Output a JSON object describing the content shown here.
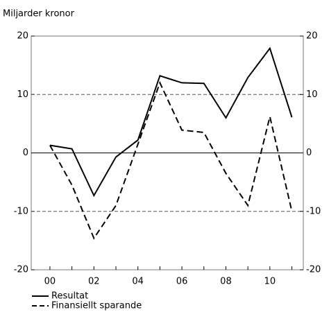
{
  "chart_data": {
    "type": "line",
    "subtitle": "Miljarder kronor",
    "categories": [
      "00",
      null,
      "02",
      null,
      "04",
      null,
      "06",
      null,
      "08",
      null,
      "10",
      null
    ],
    "series": [
      {
        "name": "Resultat",
        "color": "#000000",
        "dash": "solid",
        "values": [
          1.3,
          0.7,
          -7.3,
          -0.7,
          2.2,
          13.2,
          12,
          11.9,
          6,
          12.9,
          17.9,
          6.1
        ]
      },
      {
        "name": "Finansiellt sparande",
        "color": "#000000",
        "dash": "dashed",
        "values": [
          1.3,
          -5.5,
          -14.6,
          -9,
          1.5,
          12,
          3.9,
          3.5,
          -3.5,
          -9,
          6.2,
          -10
        ]
      }
    ],
    "ylim": [
      -20,
      20
    ],
    "yticks": [
      -20,
      -10,
      0,
      10,
      20
    ],
    "y2lim": [
      -20,
      20
    ],
    "y2ticks": [
      -20,
      -10,
      0,
      10,
      20
    ],
    "grid": true,
    "legend": "bottom-left"
  }
}
